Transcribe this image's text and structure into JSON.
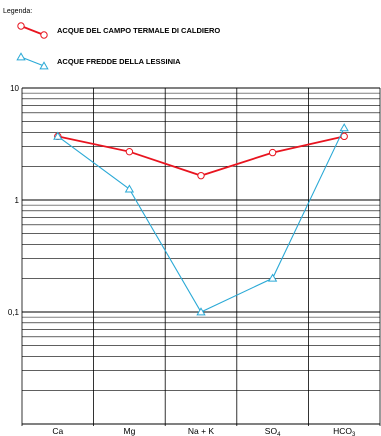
{
  "chart_data": {
    "type": "line",
    "legend_title": "Legenda:",
    "legend_placement": "top-left",
    "y_scale": "log",
    "ylim": [
      0.01,
      10
    ],
    "y_tick_labels": [
      {
        "value": 10,
        "label": "10"
      },
      {
        "value": 1,
        "label": "1"
      },
      {
        "value": 0.1,
        "label": "0,1"
      }
    ],
    "grid": true,
    "categories": [
      "Ca",
      "Mg",
      "Na + K",
      "SO4",
      "HCO3"
    ],
    "category_labels": [
      {
        "main": "Ca",
        "sub": ""
      },
      {
        "main": "Mg",
        "sub": ""
      },
      {
        "main": "Na + K",
        "sub": ""
      },
      {
        "main": "SO",
        "sub": "4"
      },
      {
        "main": "HCO",
        "sub": "3"
      }
    ],
    "series": [
      {
        "name": "ACQUE DEL CAMPO TERMALE DI CALDIERO",
        "color": "#e8141f",
        "marker": "circle",
        "values": [
          3.7,
          2.7,
          1.65,
          2.65,
          3.7
        ]
      },
      {
        "name": "ACQUE FREDDE DELLA LESSINIA",
        "color": "#2aa9d6",
        "marker": "triangle",
        "values": [
          3.7,
          1.25,
          0.1,
          0.2,
          4.4
        ]
      }
    ]
  }
}
